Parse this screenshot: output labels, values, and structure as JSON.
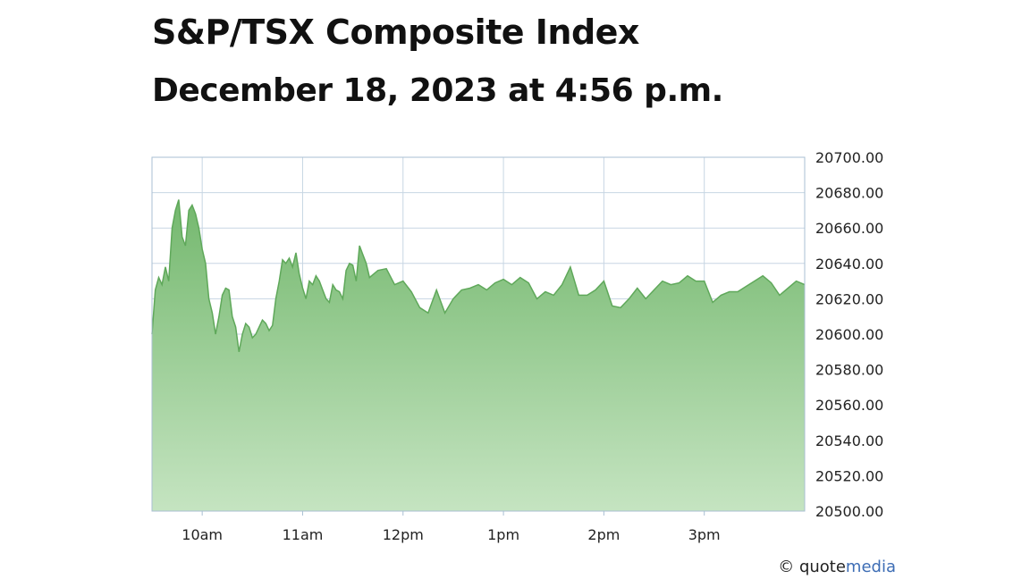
{
  "header": {
    "title": "S&P/TSX Composite Index",
    "subtitle": "December 18, 2023 at 4:56 p.m."
  },
  "credit": {
    "symbol": "©",
    "brand_part1": "quote",
    "brand_part2": "media",
    "accent_color": "#3d6db5"
  },
  "chart_data": {
    "type": "area",
    "xlabel": "",
    "ylabel": "",
    "x_unit": "time of day",
    "xlim": [
      "9:30",
      "16:00"
    ],
    "ylim": [
      20500,
      20700
    ],
    "grid": true,
    "y_axis_side": "right",
    "x_ticks": [
      {
        "label": "10am",
        "time": "10:00"
      },
      {
        "label": "11am",
        "time": "11:00"
      },
      {
        "label": "12pm",
        "time": "12:00"
      },
      {
        "label": "1pm",
        "time": "13:00"
      },
      {
        "label": "2pm",
        "time": "14:00"
      },
      {
        "label": "3pm",
        "time": "15:00"
      }
    ],
    "y_ticks": [
      "20700.00",
      "20680.00",
      "20660.00",
      "20640.00",
      "20620.00",
      "20600.00",
      "20580.00",
      "20560.00",
      "20540.00",
      "20520.00",
      "20500.00"
    ],
    "fill_color_top": "#74b86e",
    "fill_color_bottom": "#c5e4c1",
    "line_color": "#5fa85a",
    "series": [
      {
        "x": [
          "9:30",
          "9:32",
          "9:34",
          "9:36",
          "9:38",
          "9:40",
          "9:42",
          "9:44",
          "9:46",
          "9:48",
          "9:50",
          "9:52",
          "9:54",
          "9:56",
          "9:58",
          "10:00",
          "10:02",
          "10:04",
          "10:06",
          "10:08",
          "10:10",
          "10:12",
          "10:14",
          "10:16",
          "10:18",
          "10:20",
          "10:22",
          "10:24",
          "10:26",
          "10:28",
          "10:30",
          "10:32",
          "10:34",
          "10:36",
          "10:38",
          "10:40",
          "10:42",
          "10:44",
          "10:46",
          "10:48",
          "10:50",
          "10:52",
          "10:54",
          "10:56",
          "10:58",
          "11:00",
          "11:02",
          "11:04",
          "11:06",
          "11:08",
          "11:10",
          "11:12",
          "11:14",
          "11:16",
          "11:18",
          "11:20",
          "11:22",
          "11:24",
          "11:26",
          "11:28",
          "11:30",
          "11:32",
          "11:34",
          "11:36",
          "11:38",
          "11:40",
          "11:45",
          "11:50",
          "11:55",
          "12:00",
          "12:05",
          "12:10",
          "12:15",
          "12:20",
          "12:25",
          "12:30",
          "12:35",
          "12:40",
          "12:45",
          "12:50",
          "12:55",
          "13:00",
          "13:05",
          "13:10",
          "13:15",
          "13:20",
          "13:25",
          "13:30",
          "13:35",
          "13:40",
          "13:45",
          "13:50",
          "13:55",
          "14:00",
          "14:05",
          "14:10",
          "14:15",
          "14:20",
          "14:25",
          "14:30",
          "14:35",
          "14:40",
          "14:45",
          "14:50",
          "14:55",
          "15:00",
          "15:05",
          "15:10",
          "15:15",
          "15:20",
          "15:25",
          "15:30",
          "15:35",
          "15:40",
          "15:45",
          "15:50",
          "15:55",
          "16:00"
        ],
        "values": [
          20600,
          20625,
          20632,
          20628,
          20638,
          20630,
          20660,
          20670,
          20676,
          20655,
          20650,
          20670,
          20673,
          20668,
          20660,
          20648,
          20640,
          20620,
          20612,
          20600,
          20610,
          20622,
          20626,
          20625,
          20610,
          20604,
          20590,
          20600,
          20606,
          20604,
          20598,
          20600,
          20604,
          20608,
          20606,
          20602,
          20605,
          20620,
          20630,
          20642,
          20640,
          20643,
          20638,
          20646,
          20634,
          20626,
          20620,
          20630,
          20628,
          20633,
          20630,
          20625,
          20620,
          20618,
          20628,
          20625,
          20624,
          20620,
          20636,
          20640,
          20639,
          20630,
          20650,
          20645,
          20640,
          20632,
          20636,
          20637,
          20628,
          20630,
          20624,
          20615,
          20612,
          20625,
          20612,
          20620,
          20625,
          20626,
          20628,
          20625,
          20629,
          20631,
          20628,
          20632,
          20629,
          20620,
          20624,
          20622,
          20628,
          20638,
          20622,
          20622,
          20625,
          20630,
          20616,
          20615,
          20620,
          20626,
          20620,
          20625,
          20630,
          20628,
          20629,
          20633,
          20630,
          20630,
          20618,
          20622,
          20624,
          20624,
          20627,
          20630,
          20633,
          20629,
          20622,
          20626,
          20630,
          20628
        ]
      }
    ]
  }
}
